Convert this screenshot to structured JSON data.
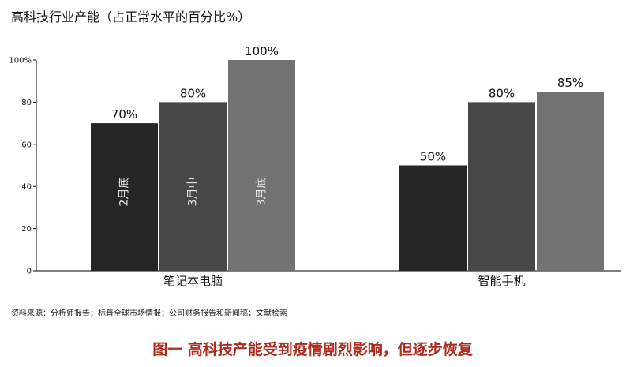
{
  "chart_data": {
    "type": "bar",
    "title": "高科技行业产能（占正常水平的百分比%）",
    "categories": [
      "笔记本电脑",
      "智能手机"
    ],
    "series": [
      {
        "name": "2月底",
        "color": "#262626",
        "values": [
          70,
          50
        ],
        "labels": [
          "70%",
          "50%"
        ]
      },
      {
        "name": "3月中",
        "color": "#474747",
        "values": [
          80,
          80
        ],
        "labels": [
          "80%",
          "80%"
        ]
      },
      {
        "name": "3月底",
        "color": "#727272",
        "values": [
          100,
          85
        ],
        "labels": [
          "100%",
          "85%"
        ]
      }
    ],
    "in_bar_labels": [
      "2月底",
      "3月中",
      "3月底"
    ],
    "ylim": [
      0,
      100
    ],
    "yticks": [
      "0",
      "20",
      "40",
      "60",
      "80",
      "100%"
    ],
    "ytick_values": [
      0,
      20,
      40,
      60,
      80,
      100
    ],
    "legend": "none",
    "grid": false
  },
  "source": "资料来源：分析师报告；标普全球市场情报；公司财务报告和新闻稿；文献检索",
  "caption": "图一 高科技产能受到疫情剧烈影响，但逐步恢复"
}
